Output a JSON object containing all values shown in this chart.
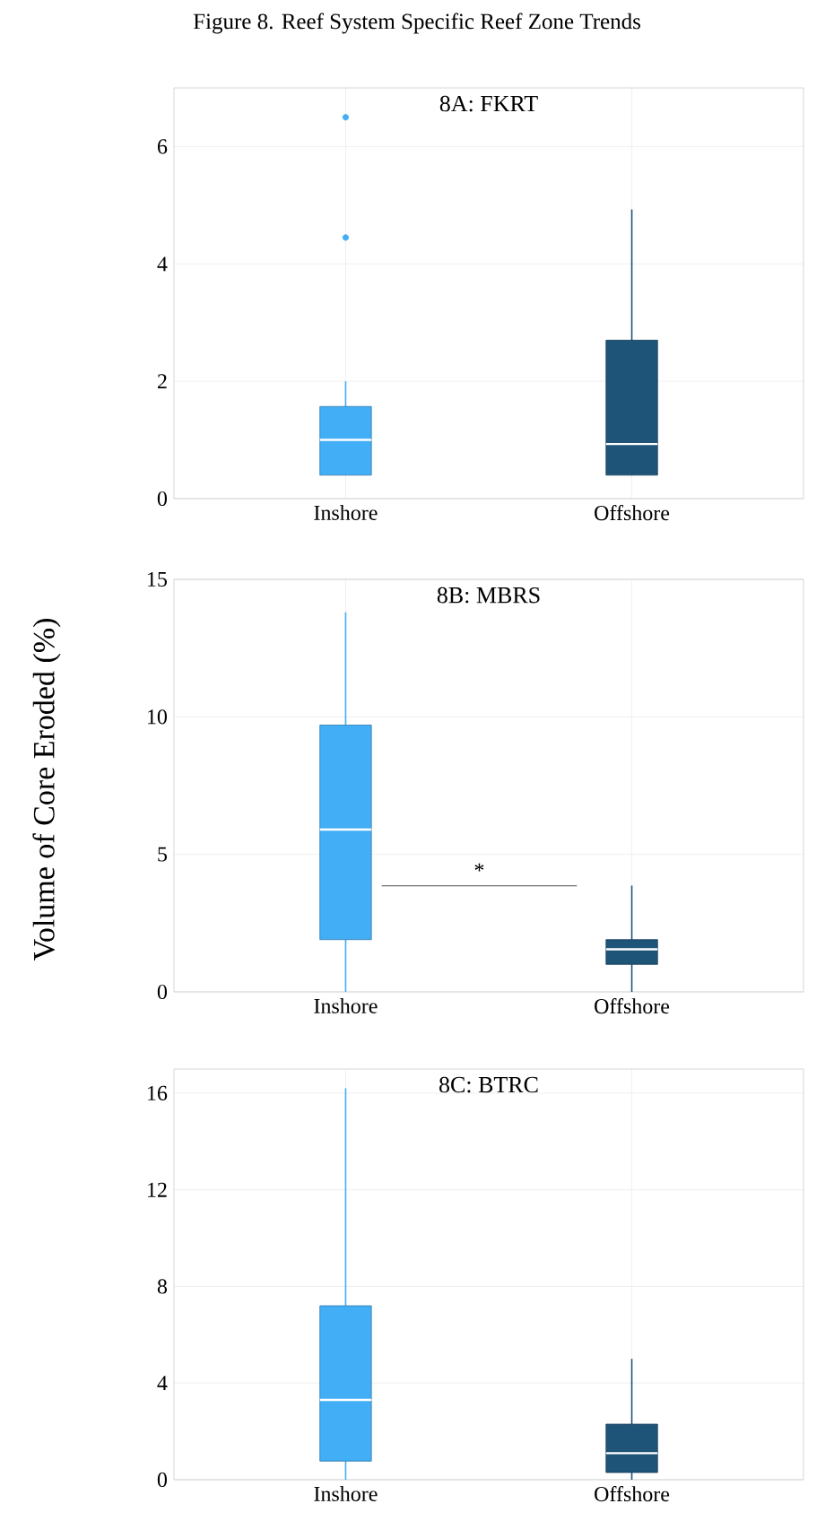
{
  "chart_data": [
    {
      "type": "box",
      "title": "8A: FKRT",
      "annotations": [
        "Figure 8. Reef System Specific Reef Zone Trends"
      ],
      "categories": [
        "Inshore",
        "Offshore"
      ],
      "colors": [
        "#42aef5",
        "#1f5479"
      ],
      "boxes": [
        {
          "low": 0.4,
          "q1": 0.4,
          "median": 1.0,
          "q3": 1.57,
          "high": 2.0,
          "outliers": [
            4.45,
            6.5
          ]
        },
        {
          "low": 0.4,
          "q1": 0.4,
          "median": 0.93,
          "q3": 2.7,
          "high": 4.93
        }
      ],
      "ylim": [
        0,
        7
      ],
      "yticks": [
        0,
        2,
        4,
        6
      ],
      "grid": true
    },
    {
      "type": "box",
      "title": "8B: MBRS",
      "ylabel": "Volume of Core Eroded (%)",
      "annotations": [
        "*"
      ],
      "categories": [
        "Inshore",
        "Offshore"
      ],
      "colors": [
        "#42aef5",
        "#1f5479"
      ],
      "boxes": [
        {
          "low": 0,
          "q1": 1.9,
          "median": 5.9,
          "q3": 9.7,
          "high": 13.8
        },
        {
          "low": 0,
          "q1": 1.0,
          "median": 1.55,
          "q3": 1.9,
          "high": 3.86
        }
      ],
      "ylim": [
        0,
        15
      ],
      "yticks": [
        0,
        5,
        10,
        15
      ],
      "grid": true
    },
    {
      "type": "box",
      "title": "8C: BTRC",
      "categories": [
        "Inshore",
        "Offshore"
      ],
      "colors": [
        "#42aef5",
        "#1f5479"
      ],
      "boxes": [
        {
          "low": 0,
          "q1": 0.77,
          "median": 3.3,
          "q3": 7.2,
          "high": 16.2
        },
        {
          "low": 0,
          "q1": 0.3,
          "median": 1.1,
          "q3": 2.3,
          "high": 5.0
        }
      ],
      "ylim": [
        0,
        17
      ],
      "yticks": [
        0,
        4,
        8,
        12,
        16
      ],
      "grid": true
    }
  ]
}
